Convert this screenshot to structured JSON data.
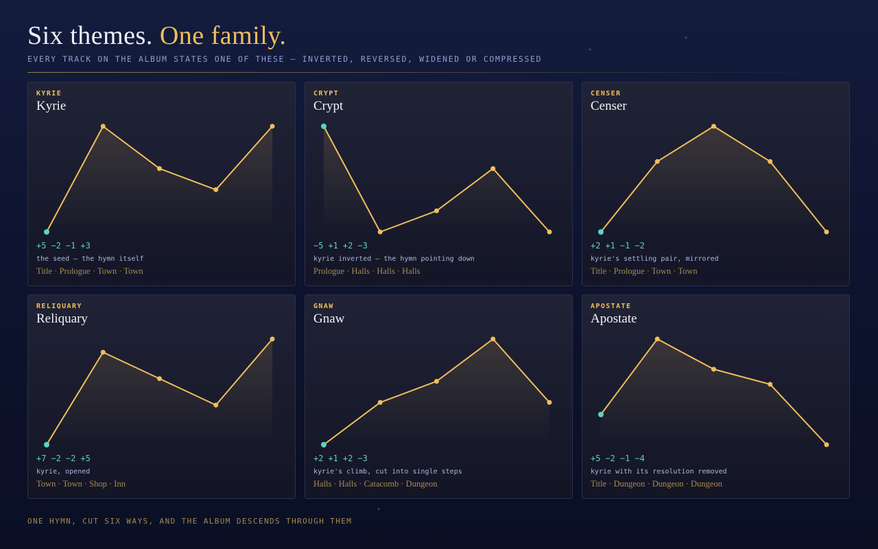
{
  "header": {
    "title_lead": "Six themes.",
    "title_accent": "One family.",
    "subtitle": "EVERY TRACK ON THE ALBUM STATES ONE OF THESE — INVERTED, REVERSED, WIDENED OR COMPRESSED"
  },
  "cards": [
    {
      "tag": "KYRIE",
      "name": "Kyrie",
      "intervals": [
        5,
        -2,
        -1,
        3
      ],
      "interval_labels": [
        "+5",
        "−2",
        "−1",
        "+3"
      ],
      "note": "the seed — the hymn itself",
      "places": "Title · Prologue · Town · Town"
    },
    {
      "tag": "CRYPT",
      "name": "Crypt",
      "intervals": [
        -5,
        1,
        2,
        -3
      ],
      "interval_labels": [
        "−5",
        "+1",
        "+2",
        "−3"
      ],
      "note": "kyrie inverted — the hymn pointing down",
      "places": "Prologue · Halls · Halls · Halls"
    },
    {
      "tag": "CENSER",
      "name": "Censer",
      "intervals": [
        2,
        1,
        -1,
        -2
      ],
      "interval_labels": [
        "+2",
        "+1",
        "−1",
        "−2"
      ],
      "note": "kyrie's settling pair, mirrored",
      "places": "Title · Prologue · Town · Town"
    },
    {
      "tag": "RELIQUARY",
      "name": "Reliquary",
      "intervals": [
        7,
        -2,
        -2,
        5
      ],
      "interval_labels": [
        "+7",
        "−2",
        "−2",
        "+5"
      ],
      "note": "kyrie, opened",
      "places": "Town · Town · Shop · Inn"
    },
    {
      "tag": "GNAW",
      "name": "Gnaw",
      "intervals": [
        2,
        1,
        2,
        -3
      ],
      "interval_labels": [
        "+2",
        "+1",
        "+2",
        "−3"
      ],
      "note": "kyrie's climb, cut into single steps",
      "places": "Halls · Halls · Catacomb · Dungeon"
    },
    {
      "tag": "APOSTATE",
      "name": "Apostate",
      "intervals": [
        5,
        -2,
        -1,
        -4
      ],
      "interval_labels": [
        "+5",
        "−2",
        "−1",
        "−4"
      ],
      "note": "kyrie with its resolution removed",
      "places": "Title · Dungeon · Dungeon · Dungeon"
    }
  ],
  "footer": "ONE HYMN, CUT SIX WAYS, AND THE ALBUM DESCENDS THROUGH THEM"
}
